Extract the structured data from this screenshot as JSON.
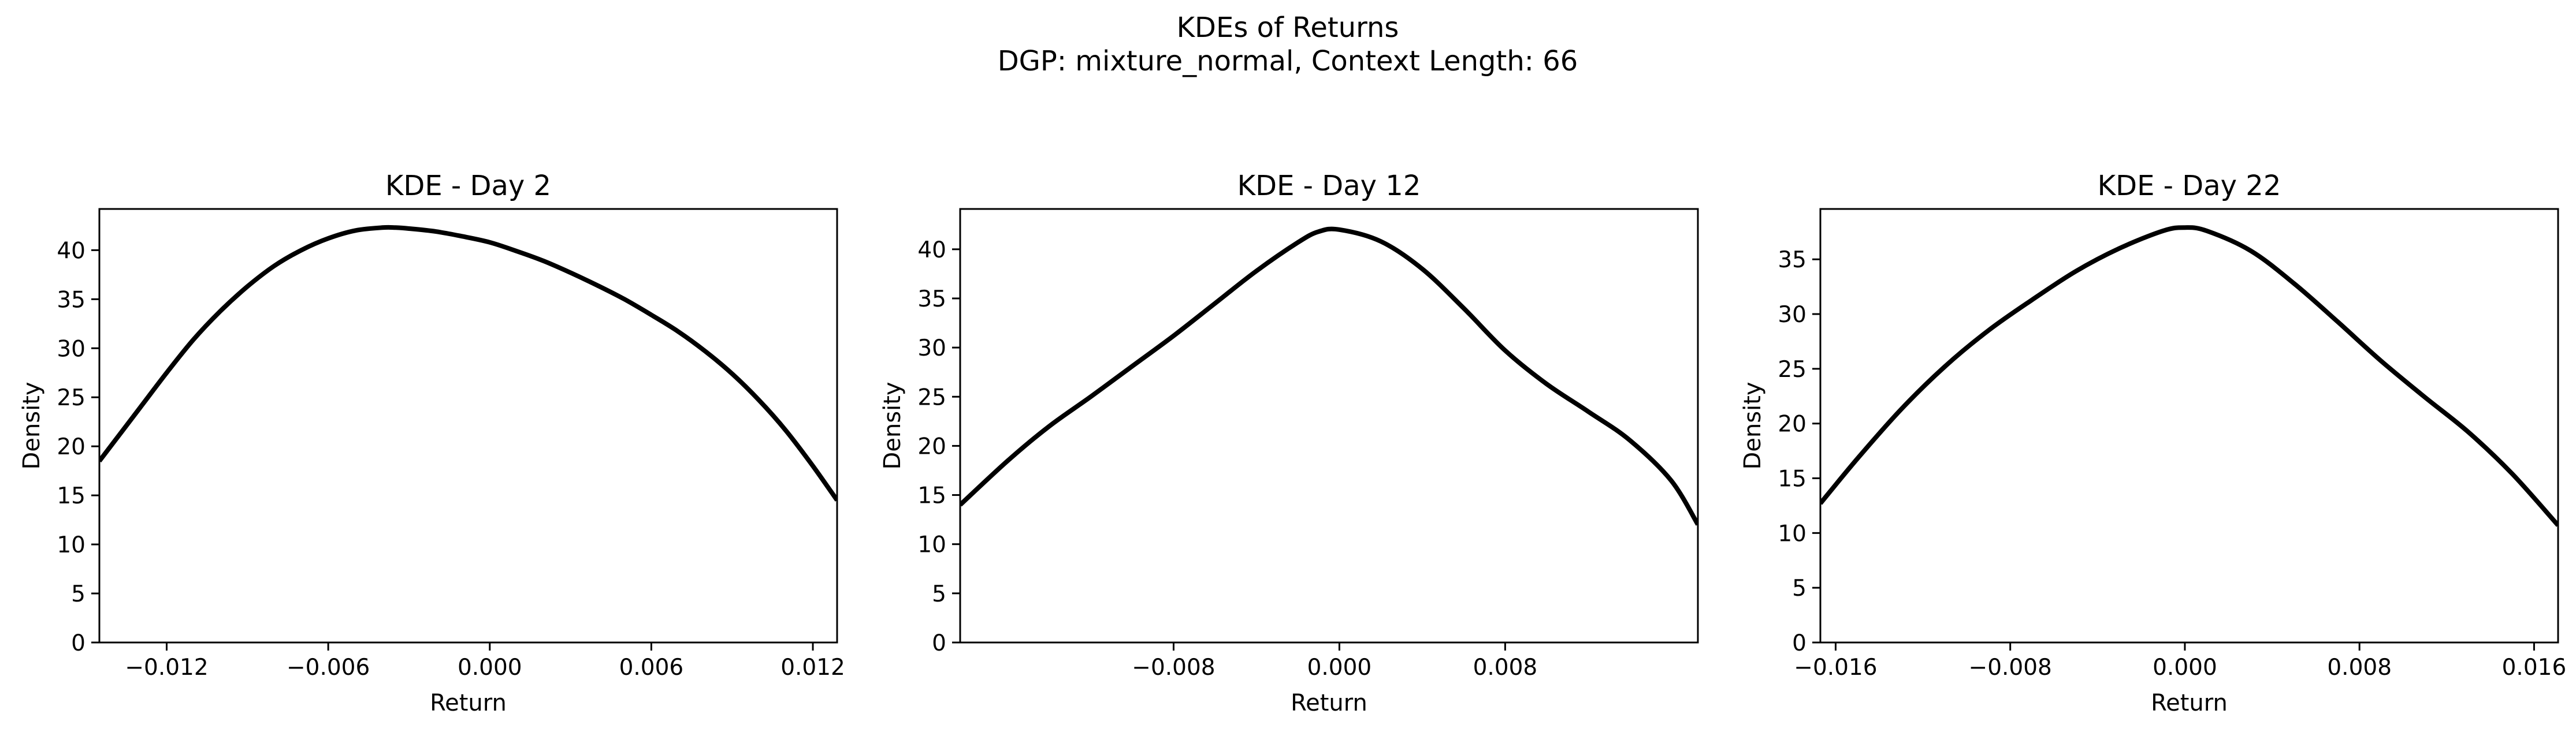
{
  "figure": {
    "title_line1": "KDEs of Returns",
    "title_line2": "DGP: mixture_normal, Context Length: 66"
  },
  "style": {
    "line_color": "#000000",
    "background": "#ffffff"
  },
  "chart_data": [
    {
      "type": "line",
      "title": "KDE - Day 2",
      "xlabel": "Return",
      "ylabel": "Density",
      "xlim": [
        -0.0145,
        0.0129
      ],
      "ylim": [
        0,
        44.2
      ],
      "xticks": [
        -0.012,
        -0.006,
        0.0,
        0.006,
        0.012
      ],
      "xtick_labels": [
        "−0.012",
        "−0.006",
        "0.000",
        "0.006",
        "0.012"
      ],
      "yticks": [
        0,
        5,
        10,
        15,
        20,
        25,
        30,
        35,
        40
      ],
      "ytick_labels": [
        "0",
        "5",
        "10",
        "15",
        "20",
        "25",
        "30",
        "35",
        "40"
      ],
      "grid": false,
      "legend": "none",
      "series": [
        {
          "x": [
            -0.0145,
            -0.013,
            -0.012,
            -0.011,
            -0.01,
            -0.009,
            -0.008,
            -0.007,
            -0.006,
            -0.005,
            -0.004,
            -0.0035,
            -0.003,
            -0.002,
            -0.001,
            0.0,
            0.001,
            0.002,
            0.003,
            0.004,
            0.005,
            0.006,
            0.007,
            0.008,
            0.009,
            0.01,
            0.011,
            0.012,
            0.0129
          ],
          "y": [
            18.5,
            23.9,
            27.5,
            30.9,
            33.8,
            36.3,
            38.4,
            40.0,
            41.2,
            42.0,
            42.3,
            42.3,
            42.2,
            41.9,
            41.4,
            40.8,
            39.9,
            38.9,
            37.7,
            36.4,
            35.0,
            33.4,
            31.7,
            29.7,
            27.4,
            24.7,
            21.6,
            18.0,
            14.5
          ]
        }
      ]
    },
    {
      "type": "line",
      "title": "KDE - Day 12",
      "xlabel": "Return",
      "ylabel": "Density",
      "xlim": [
        -0.0183,
        0.0173
      ],
      "ylim": [
        0,
        44.1
      ],
      "xticks": [
        -0.008,
        0.0,
        0.008
      ],
      "xtick_labels": [
        "−0.008",
        "0.000",
        "0.008"
      ],
      "yticks": [
        0,
        5,
        10,
        15,
        20,
        25,
        30,
        35,
        40
      ],
      "ytick_labels": [
        "0",
        "5",
        "10",
        "15",
        "20",
        "25",
        "30",
        "35",
        "40"
      ],
      "grid": false,
      "legend": "none",
      "series": [
        {
          "x": [
            -0.0183,
            -0.016,
            -0.014,
            -0.012,
            -0.01,
            -0.008,
            -0.006,
            -0.004,
            -0.002,
            -0.001,
            0.0,
            0.002,
            0.004,
            0.006,
            0.008,
            0.01,
            0.012,
            0.014,
            0.016,
            0.0173
          ],
          "y": [
            14.0,
            18.5,
            22.0,
            25.0,
            28.1,
            31.2,
            34.5,
            37.8,
            40.7,
            41.8,
            42.0,
            40.8,
            38.0,
            34.0,
            29.7,
            26.3,
            23.5,
            20.6,
            16.5,
            12.0
          ]
        }
      ]
    },
    {
      "type": "line",
      "title": "KDE - Day 22",
      "xlabel": "Return",
      "ylabel": "Density",
      "xlim": [
        -0.0167,
        0.0171
      ],
      "ylim": [
        0,
        39.6
      ],
      "xticks": [
        -0.016,
        -0.008,
        0.0,
        0.008,
        0.016
      ],
      "xtick_labels": [
        "−0.016",
        "−0.008",
        "0.000",
        "0.008",
        "0.016"
      ],
      "yticks": [
        0,
        5,
        10,
        15,
        20,
        25,
        30,
        35
      ],
      "ytick_labels": [
        "0",
        "5",
        "10",
        "15",
        "20",
        "25",
        "30",
        "35"
      ],
      "grid": false,
      "legend": "none",
      "series": [
        {
          "x": [
            -0.0167,
            -0.015,
            -0.013,
            -0.011,
            -0.009,
            -0.007,
            -0.005,
            -0.003,
            -0.001,
            0.0,
            0.001,
            0.003,
            0.005,
            0.007,
            0.009,
            0.011,
            0.013,
            0.015,
            0.0171
          ],
          "y": [
            12.7,
            16.8,
            21.3,
            25.2,
            28.5,
            31.3,
            33.9,
            36.0,
            37.6,
            37.9,
            37.6,
            35.8,
            32.8,
            29.3,
            25.7,
            22.4,
            19.2,
            15.4,
            10.7
          ]
        }
      ]
    }
  ]
}
